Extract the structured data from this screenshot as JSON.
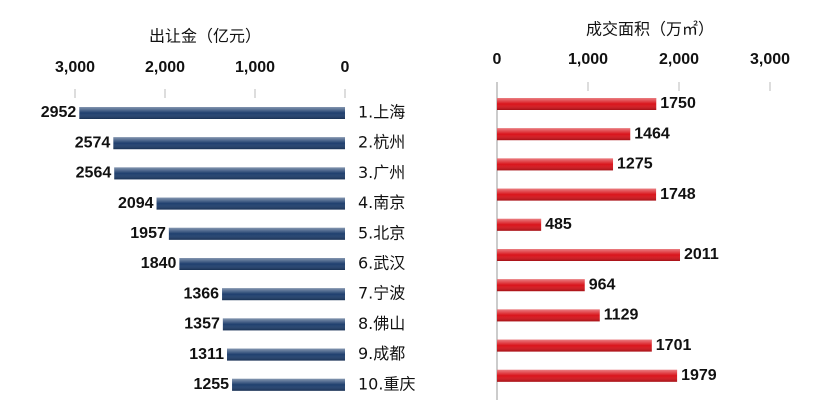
{
  "chart_data": [
    {
      "type": "hbar",
      "title": "出让金（亿元）",
      "categories": [
        "1.上海",
        "2.杭州",
        "3.广州",
        "4.南京",
        "5.北京",
        "6.武汉",
        "7.宁波",
        "8.佛山",
        "9.成都",
        "10.重庆"
      ],
      "values": [
        2952,
        2574,
        2564,
        2094,
        1957,
        1840,
        1366,
        1357,
        1311,
        1255
      ],
      "color": "#1f3f6e",
      "xlim": [
        0,
        3000
      ],
      "reversed": true,
      "xticks": [
        {
          "value": 3000,
          "label": "3,000"
        },
        {
          "value": 2000,
          "label": "2,000"
        },
        {
          "value": 1000,
          "label": "1,000"
        },
        0
      ]
    },
    {
      "type": "hbar",
      "title": "成交面积（万㎡）",
      "values": [
        1750,
        1464,
        1275,
        1748,
        485,
        2011,
        964,
        1129,
        1701,
        1979
      ],
      "color": "#d9141b",
      "xlim": [
        0,
        3000
      ],
      "reversed": false,
      "xticks": [
        0,
        {
          "value": 1000,
          "label": "1,000"
        },
        {
          "value": 2000,
          "label": "2,000"
        },
        {
          "value": 3000,
          "label": "3,000"
        }
      ]
    }
  ]
}
